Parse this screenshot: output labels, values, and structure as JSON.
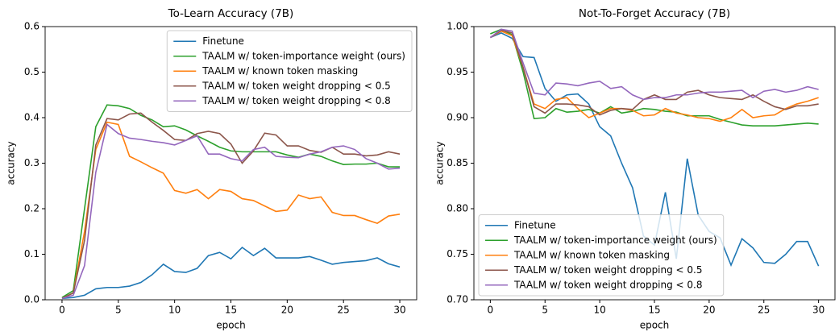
{
  "chart_data": [
    {
      "type": "line",
      "title": "To-Learn Accuracy (7B)",
      "xlabel": "epoch",
      "ylabel": "accuracy",
      "x": [
        0,
        1,
        2,
        3,
        4,
        5,
        6,
        7,
        8,
        9,
        10,
        11,
        12,
        13,
        14,
        15,
        16,
        17,
        18,
        19,
        20,
        21,
        22,
        23,
        24,
        25,
        26,
        27,
        28,
        29,
        30
      ],
      "xlim": [
        -1.5,
        31.5
      ],
      "xticks": [
        0,
        5,
        10,
        15,
        20,
        25,
        30
      ],
      "ylim": [
        0,
        0.6
      ],
      "yticks": [
        {
          "value": 0,
          "label": "0.0"
        },
        0.1,
        0.2,
        0.3,
        0.4,
        0.5,
        0.6
      ],
      "legend": "upper right",
      "series": [
        {
          "name": "Finetune",
          "color": "#1f77b4",
          "values": [
            0.003,
            0.005,
            0.01,
            0.024,
            0.027,
            0.027,
            0.03,
            0.038,
            0.055,
            0.078,
            0.062,
            0.06,
            0.069,
            0.097,
            0.104,
            0.09,
            0.115,
            0.097,
            0.113,
            0.092,
            0.092,
            0.092,
            0.095,
            0.087,
            0.078,
            0.082,
            0.084,
            0.086,
            0.092,
            0.079,
            0.072
          ]
        },
        {
          "name": "TAALM w/ token-importance weight (ours)",
          "color": "#2ca02c",
          "values": [
            0.005,
            0.02,
            0.2,
            0.38,
            0.428,
            0.426,
            0.42,
            0.405,
            0.395,
            0.38,
            0.382,
            0.373,
            0.36,
            0.348,
            0.335,
            0.327,
            0.325,
            0.325,
            0.325,
            0.325,
            0.318,
            0.313,
            0.32,
            0.315,
            0.305,
            0.297,
            0.298,
            0.298,
            0.3,
            0.292,
            0.292
          ]
        },
        {
          "name": "TAALM w/ known token masking",
          "color": "#ff7f0e",
          "values": [
            0.003,
            0.015,
            0.15,
            0.33,
            0.39,
            0.385,
            0.315,
            0.303,
            0.29,
            0.278,
            0.24,
            0.234,
            0.242,
            0.222,
            0.242,
            0.238,
            0.222,
            0.218,
            0.206,
            0.194,
            0.197,
            0.23,
            0.222,
            0.226,
            0.192,
            0.185,
            0.185,
            0.176,
            0.168,
            0.184,
            0.188
          ]
        },
        {
          "name": "TAALM w/ token weight dropping < 0.5",
          "color": "#8c564b",
          "values": [
            0.003,
            0.015,
            0.13,
            0.34,
            0.398,
            0.395,
            0.408,
            0.41,
            0.39,
            0.372,
            0.352,
            0.35,
            0.365,
            0.37,
            0.365,
            0.342,
            0.3,
            0.327,
            0.366,
            0.362,
            0.338,
            0.338,
            0.328,
            0.324,
            0.335,
            0.32,
            0.32,
            0.316,
            0.318,
            0.325,
            0.32
          ]
        },
        {
          "name": "TAALM w/ token weight dropping < 0.8",
          "color": "#9467bd",
          "values": [
            0.003,
            0.01,
            0.075,
            0.28,
            0.385,
            0.365,
            0.355,
            0.352,
            0.348,
            0.345,
            0.34,
            0.35,
            0.36,
            0.32,
            0.32,
            0.31,
            0.305,
            0.33,
            0.335,
            0.315,
            0.313,
            0.312,
            0.32,
            0.325,
            0.335,
            0.338,
            0.33,
            0.31,
            0.3,
            0.287,
            0.289
          ]
        }
      ]
    },
    {
      "type": "line",
      "title": "Not-To-Forget Accuracy (7B)",
      "xlabel": "epoch",
      "ylabel": "accuracy",
      "x": [
        0,
        1,
        2,
        3,
        4,
        5,
        6,
        7,
        8,
        9,
        10,
        11,
        12,
        13,
        14,
        15,
        16,
        17,
        18,
        19,
        20,
        21,
        22,
        23,
        24,
        25,
        26,
        27,
        28,
        29,
        30
      ],
      "xlim": [
        -1.5,
        31.5
      ],
      "xticks": [
        0,
        5,
        10,
        15,
        20,
        25,
        30
      ],
      "ylim": [
        0.7,
        1.0
      ],
      "yticks": [
        {
          "value": 0.7,
          "label": "0.70"
        },
        0.75,
        {
          "value": 0.8,
          "label": "0.80"
        },
        0.85,
        {
          "value": 0.9,
          "label": "0.90"
        },
        0.95,
        {
          "value": 1.0,
          "label": "1.00"
        }
      ],
      "legend": "lower left",
      "series": [
        {
          "name": "Finetune",
          "color": "#1f77b4",
          "values": [
            0.988,
            0.993,
            0.987,
            0.967,
            0.966,
            0.932,
            0.918,
            0.925,
            0.926,
            0.915,
            0.89,
            0.88,
            0.85,
            0.823,
            0.77,
            0.76,
            0.818,
            0.745,
            0.855,
            0.793,
            0.775,
            0.768,
            0.738,
            0.767,
            0.757,
            0.741,
            0.74,
            0.75,
            0.764,
            0.764,
            0.737
          ]
        },
        {
          "name": "TAALM w/ token-importance weight (ours)",
          "color": "#2ca02c",
          "values": [
            0.992,
            0.997,
            0.991,
            0.95,
            0.899,
            0.9,
            0.91,
            0.906,
            0.907,
            0.909,
            0.905,
            0.912,
            0.905,
            0.907,
            0.91,
            0.909,
            0.907,
            0.906,
            0.902,
            0.902,
            0.902,
            0.898,
            0.895,
            0.892,
            0.891,
            0.891,
            0.891,
            0.892,
            0.893,
            0.894,
            0.893
          ]
        },
        {
          "name": "TAALM w/ known token masking",
          "color": "#ff7f0e",
          "values": [
            0.988,
            0.995,
            0.99,
            0.955,
            0.915,
            0.91,
            0.92,
            0.922,
            0.91,
            0.9,
            0.905,
            0.91,
            0.91,
            0.908,
            0.902,
            0.903,
            0.91,
            0.905,
            0.903,
            0.9,
            0.899,
            0.896,
            0.9,
            0.909,
            0.9,
            0.902,
            0.903,
            0.91,
            0.915,
            0.918,
            0.922
          ]
        },
        {
          "name": "TAALM w/ token weight dropping < 0.5",
          "color": "#8c564b",
          "values": [
            0.988,
            0.996,
            0.993,
            0.955,
            0.912,
            0.905,
            0.915,
            0.915,
            0.914,
            0.912,
            0.903,
            0.908,
            0.91,
            0.909,
            0.92,
            0.925,
            0.92,
            0.92,
            0.928,
            0.93,
            0.925,
            0.922,
            0.921,
            0.92,
            0.925,
            0.918,
            0.912,
            0.909,
            0.913,
            0.913,
            0.915
          ]
        },
        {
          "name": "TAALM w/ token weight dropping < 0.8",
          "color": "#9467bd",
          "values": [
            0.988,
            0.997,
            0.995,
            0.96,
            0.927,
            0.925,
            0.938,
            0.937,
            0.935,
            0.938,
            0.94,
            0.932,
            0.934,
            0.925,
            0.92,
            0.922,
            0.922,
            0.925,
            0.925,
            0.927,
            0.928,
            0.928,
            0.929,
            0.93,
            0.922,
            0.929,
            0.931,
            0.928,
            0.93,
            0.934,
            0.931
          ]
        }
      ]
    }
  ]
}
